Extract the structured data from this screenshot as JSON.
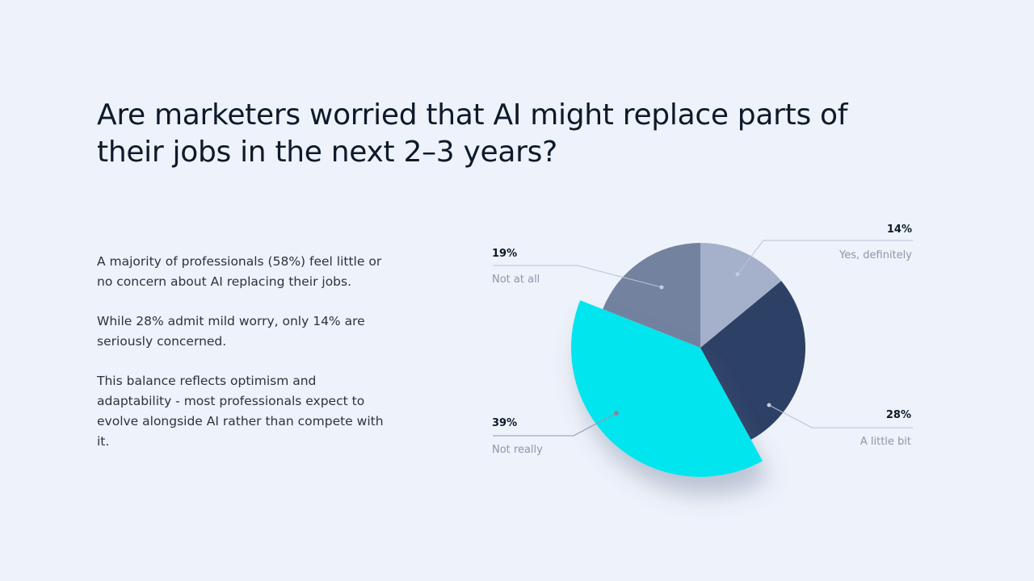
{
  "title": "Are marketers worried that AI might replace parts of their jobs in the next 2–3 years?",
  "body": {
    "paragraphs": [
      "A majority of professionals (58%) feel little or no concern about AI replacing their jobs.",
      "While 28% admit mild worry, only 14% are seriously concerned.",
      "This balance reflects optimism and adaptability - most professionals expect to evolve alongside AI rather than compete with it."
    ]
  },
  "labels": {
    "yes": {
      "pct": "14%",
      "label": "Yes, definitely"
    },
    "little": {
      "pct": "28%",
      "label": "A little bit"
    },
    "notreally": {
      "pct": "39%",
      "label": "Not really"
    },
    "notatall": {
      "pct": "19%",
      "label": "Not at all"
    }
  },
  "colors": {
    "yes": "#A5B1CB",
    "little": "#2D4066",
    "notreally": "#00E5EE",
    "notatall": "#72829F",
    "background": "#EEF2FA"
  },
  "chart_data": {
    "type": "pie",
    "title": "Are marketers worried that AI might replace parts of their jobs in the next 2–3 years?",
    "categories": [
      "Yes, definitely",
      "A little bit",
      "Not really",
      "Not at all"
    ],
    "values": [
      14,
      28,
      39,
      19
    ],
    "unit": "%",
    "exploded": "Not really",
    "colors": [
      "#A5B1CB",
      "#2D4066",
      "#00E5EE",
      "#72829F"
    ]
  }
}
